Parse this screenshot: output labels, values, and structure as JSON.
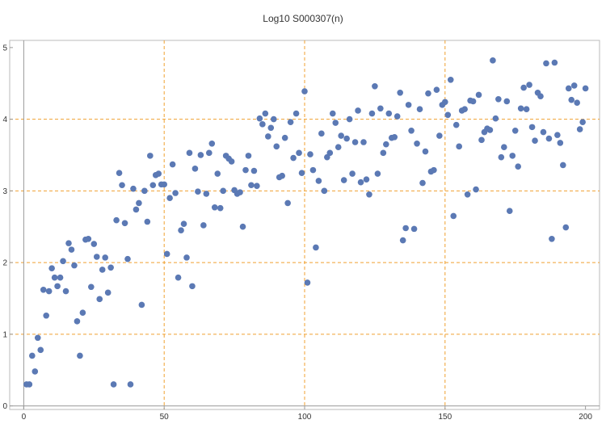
{
  "chart_data": {
    "type": "scatter",
    "title": "Log10 S000307(n)",
    "xlabel": "",
    "ylabel": "",
    "xlim": [
      -5,
      205
    ],
    "ylim": [
      -0.05,
      5.1
    ],
    "x_ticks": [
      0,
      50,
      100,
      150,
      200
    ],
    "x_tick_labels": [
      "0",
      "50",
      "100",
      "150",
      "200"
    ],
    "y_ticks": [
      0,
      1,
      2,
      3,
      4,
      5
    ],
    "y_tick_labels": [
      "0",
      "1",
      "2",
      "3",
      "4",
      "5"
    ],
    "grid": "dashed at 50, 100, 150 on x and 1, 2, 3, 4 on y",
    "grid_x": [
      50,
      100,
      150
    ],
    "grid_y": [
      1,
      2,
      3,
      4
    ],
    "colors": {
      "point": "#5b79b4",
      "grid": "#f0a030",
      "axis": "#999999",
      "frame": "#bbbbbb"
    },
    "series": [
      {
        "points": [
          [
            1,
            0.3
          ],
          [
            2,
            0.3
          ],
          [
            3,
            0.7
          ],
          [
            4,
            0.48
          ],
          [
            5,
            0.95
          ],
          [
            6,
            0.78
          ],
          [
            7,
            1.62
          ],
          [
            8,
            1.26
          ],
          [
            9,
            1.6
          ],
          [
            10,
            1.92
          ],
          [
            11,
            1.79
          ],
          [
            12,
            1.67
          ],
          [
            13,
            1.79
          ],
          [
            14,
            2.02
          ],
          [
            15,
            1.6
          ],
          [
            16,
            2.27
          ],
          [
            17,
            2.18
          ],
          [
            18,
            1.96
          ],
          [
            19,
            1.18
          ],
          [
            20,
            0.7
          ],
          [
            21,
            1.3
          ],
          [
            22,
            2.32
          ],
          [
            23,
            2.33
          ],
          [
            24,
            1.66
          ],
          [
            25,
            2.26
          ],
          [
            26,
            2.08
          ],
          [
            27,
            1.49
          ],
          [
            28,
            1.9
          ],
          [
            29,
            2.07
          ],
          [
            30,
            1.58
          ],
          [
            31,
            1.93
          ],
          [
            32,
            0.3
          ],
          [
            33,
            2.59
          ],
          [
            34,
            3.25
          ],
          [
            35,
            3.08
          ],
          [
            36,
            2.55
          ],
          [
            37,
            2.05
          ],
          [
            38,
            0.3
          ],
          [
            39,
            3.03
          ],
          [
            40,
            2.74
          ],
          [
            41,
            2.83
          ],
          [
            42,
            1.41
          ],
          [
            43,
            3.0
          ],
          [
            44,
            2.57
          ],
          [
            45,
            3.49
          ],
          [
            46,
            3.08
          ],
          [
            47,
            3.22
          ],
          [
            48,
            3.24
          ],
          [
            49,
            3.09
          ],
          [
            50,
            3.09
          ],
          [
            51,
            2.12
          ],
          [
            52,
            2.9
          ],
          [
            53,
            3.37
          ],
          [
            54,
            2.97
          ],
          [
            55,
            1.79
          ],
          [
            56,
            2.45
          ],
          [
            57,
            2.54
          ],
          [
            58,
            2.07
          ],
          [
            59,
            3.53
          ],
          [
            60,
            1.67
          ],
          [
            61,
            3.31
          ],
          [
            62,
            2.99
          ],
          [
            63,
            3.5
          ],
          [
            64,
            2.52
          ],
          [
            65,
            2.96
          ],
          [
            66,
            3.53
          ],
          [
            67,
            3.66
          ],
          [
            68,
            2.77
          ],
          [
            69,
            3.24
          ],
          [
            70,
            2.76
          ],
          [
            71,
            3.0
          ],
          [
            72,
            3.49
          ],
          [
            73,
            3.45
          ],
          [
            74,
            3.41
          ],
          [
            75,
            3.01
          ],
          [
            76,
            2.96
          ],
          [
            77,
            2.98
          ],
          [
            78,
            2.5
          ],
          [
            79,
            3.29
          ],
          [
            80,
            3.49
          ],
          [
            81,
            3.08
          ],
          [
            82,
            3.28
          ],
          [
            83,
            3.07
          ],
          [
            84,
            4.01
          ],
          [
            85,
            3.93
          ],
          [
            86,
            4.08
          ],
          [
            87,
            3.76
          ],
          [
            88,
            3.88
          ],
          [
            89,
            4.0
          ],
          [
            90,
            3.62
          ],
          [
            91,
            3.19
          ],
          [
            92,
            3.21
          ],
          [
            93,
            3.74
          ],
          [
            94,
            2.83
          ],
          [
            95,
            3.96
          ],
          [
            96,
            3.46
          ],
          [
            97,
            4.08
          ],
          [
            98,
            3.53
          ],
          [
            99,
            3.25
          ],
          [
            100,
            4.39
          ],
          [
            101,
            1.72
          ],
          [
            102,
            3.51
          ],
          [
            103,
            3.29
          ],
          [
            104,
            2.21
          ],
          [
            105,
            3.14
          ],
          [
            106,
            3.8
          ],
          [
            107,
            3.0
          ],
          [
            108,
            3.47
          ],
          [
            109,
            3.53
          ],
          [
            110,
            4.08
          ],
          [
            111,
            3.95
          ],
          [
            112,
            3.61
          ],
          [
            113,
            3.77
          ],
          [
            114,
            3.15
          ],
          [
            115,
            3.73
          ],
          [
            116,
            4.0
          ],
          [
            117,
            3.24
          ],
          [
            118,
            3.68
          ],
          [
            119,
            4.12
          ],
          [
            120,
            3.12
          ],
          [
            121,
            3.68
          ],
          [
            122,
            3.16
          ],
          [
            123,
            2.95
          ],
          [
            124,
            4.08
          ],
          [
            125,
            4.46
          ],
          [
            126,
            3.24
          ],
          [
            127,
            4.15
          ],
          [
            128,
            3.53
          ],
          [
            129,
            3.65
          ],
          [
            130,
            4.08
          ],
          [
            131,
            3.74
          ],
          [
            132,
            3.75
          ],
          [
            133,
            4.04
          ],
          [
            134,
            4.37
          ],
          [
            135,
            2.31
          ],
          [
            136,
            2.48
          ],
          [
            137,
            4.2
          ],
          [
            138,
            3.84
          ],
          [
            139,
            2.47
          ],
          [
            140,
            3.66
          ],
          [
            141,
            4.14
          ],
          [
            142,
            3.11
          ],
          [
            143,
            3.55
          ],
          [
            144,
            4.36
          ],
          [
            145,
            3.27
          ],
          [
            146,
            3.29
          ],
          [
            147,
            4.41
          ],
          [
            148,
            3.77
          ],
          [
            149,
            4.2
          ],
          [
            150,
            4.24
          ],
          [
            151,
            4.06
          ],
          [
            152,
            4.55
          ],
          [
            153,
            2.65
          ],
          [
            154,
            3.92
          ],
          [
            155,
            3.62
          ],
          [
            156,
            4.12
          ],
          [
            157,
            4.14
          ],
          [
            158,
            2.95
          ],
          [
            159,
            4.26
          ],
          [
            160,
            4.25
          ],
          [
            161,
            3.02
          ],
          [
            162,
            4.34
          ],
          [
            163,
            3.71
          ],
          [
            164,
            3.82
          ],
          [
            165,
            3.87
          ],
          [
            166,
            3.85
          ],
          [
            167,
            4.82
          ],
          [
            168,
            4.01
          ],
          [
            169,
            4.28
          ],
          [
            170,
            3.47
          ],
          [
            171,
            3.61
          ],
          [
            172,
            4.25
          ],
          [
            173,
            2.72
          ],
          [
            174,
            3.49
          ],
          [
            175,
            3.84
          ],
          [
            176,
            3.34
          ],
          [
            177,
            4.15
          ],
          [
            178,
            4.44
          ],
          [
            179,
            4.14
          ],
          [
            180,
            4.48
          ],
          [
            181,
            3.89
          ],
          [
            182,
            3.7
          ],
          [
            183,
            4.37
          ],
          [
            184,
            4.32
          ],
          [
            185,
            3.82
          ],
          [
            186,
            4.78
          ],
          [
            187,
            3.73
          ],
          [
            188,
            2.33
          ],
          [
            189,
            4.79
          ],
          [
            190,
            3.78
          ],
          [
            191,
            3.67
          ],
          [
            192,
            3.36
          ],
          [
            193,
            2.49
          ],
          [
            194,
            4.43
          ],
          [
            195,
            4.27
          ],
          [
            196,
            4.47
          ],
          [
            197,
            4.23
          ],
          [
            198,
            3.86
          ],
          [
            199,
            3.96
          ],
          [
            200,
            4.43
          ]
        ]
      }
    ]
  }
}
